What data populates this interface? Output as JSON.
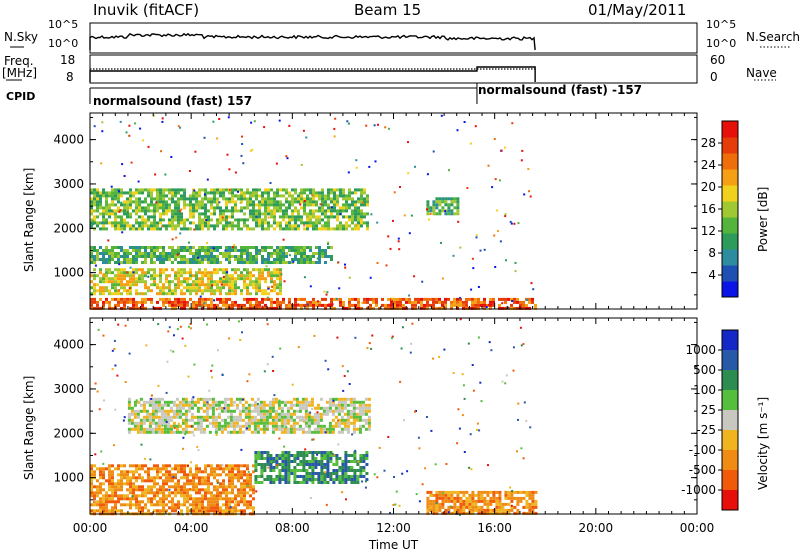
{
  "header": {
    "station": "Inuvik (fitACF)",
    "beam": "Beam 15",
    "date": "01/May/2011"
  },
  "sky_panel": {
    "left_label": "N.Sky",
    "right_label": "N.Search",
    "left_ticks": [
      "10^5",
      "10^0"
    ],
    "right_ticks": [
      "10^5",
      "10^0"
    ]
  },
  "freq_panel": {
    "left_label_1": "Freq.",
    "left_label_2": "[MHz]",
    "right_label": "Nave",
    "left_ticks": [
      "18",
      "8"
    ],
    "right_ticks": [
      "60",
      "0"
    ]
  },
  "cpid": {
    "label": "CPID",
    "segments": [
      {
        "label": "normalsound (fast) 157",
        "start_hour": 0
      },
      {
        "label": "normalsound (fast) -157",
        "start_hour": 15.3
      }
    ]
  },
  "chart_data": [
    {
      "type": "heatmap",
      "name": "power",
      "xlabel": "",
      "ylabel": "Slant Range [km]",
      "x_ticks": [
        "00:00",
        "04:00",
        "08:00",
        "12:00",
        "16:00",
        "20:00",
        "00:00"
      ],
      "xlim": [
        0,
        24
      ],
      "y_ticks": [
        "1000",
        "2000",
        "3000",
        "4000"
      ],
      "ylim": [
        180,
        4600
      ],
      "data_extent_hours": [
        0,
        17.6
      ],
      "colorbar": {
        "label": "Power [dB]",
        "ticks": [
          "4",
          "8",
          "12",
          "16",
          "20",
          "24",
          "28"
        ],
        "range": [
          0,
          32
        ],
        "colors": [
          "#0a14e6",
          "#1e50b4",
          "#2d8ca0",
          "#2d9b5a",
          "#55b43c",
          "#a0c832",
          "#f0d21e",
          "#f5a014",
          "#f06e0a",
          "#e63c0a",
          "#e60f0a"
        ]
      },
      "bands": [
        {
          "range_km": [
            180,
            430
          ],
          "hours": [
            0,
            17.6
          ],
          "mean_db": 26
        },
        {
          "range_km": [
            500,
            1100
          ],
          "hours": [
            0,
            7.5
          ],
          "mean_db": 18
        },
        {
          "range_km": [
            1250,
            1600
          ],
          "hours": [
            0,
            9.5
          ],
          "mean_db": 12
        },
        {
          "range_km": [
            2000,
            2900
          ],
          "hours": [
            0,
            11.0
          ],
          "mean_db": 14
        },
        {
          "range_km": [
            2300,
            2700
          ],
          "hours": [
            13.3,
            14.5
          ],
          "mean_db": 12
        }
      ]
    },
    {
      "type": "heatmap",
      "name": "velocity",
      "xlabel": "Time UT",
      "ylabel": "Slant Range [km]",
      "x_ticks": [
        "00:00",
        "04:00",
        "08:00",
        "12:00",
        "16:00",
        "20:00",
        "00:00"
      ],
      "xlim": [
        0,
        24
      ],
      "y_ticks": [
        "1000",
        "2000",
        "3000",
        "4000"
      ],
      "ylim": [
        180,
        4600
      ],
      "data_extent_hours": [
        0,
        17.6
      ],
      "colorbar": {
        "label": "Velocity [m s⁻¹]",
        "ticks": [
          "1000",
          "500",
          "100",
          "25",
          "-25",
          "-100",
          "-500",
          "-1000"
        ],
        "colors": [
          "#1428c8",
          "#2858a8",
          "#2d8c50",
          "#55be3c",
          "#c8c8c0",
          "#f0b41e",
          "#f08c14",
          "#f05a0a",
          "#e60f0a"
        ]
      },
      "bands": [
        {
          "range_km": [
            180,
            1300
          ],
          "hours": [
            0,
            6.5
          ],
          "mean_velocity": -300
        },
        {
          "range_km": [
            2000,
            2800
          ],
          "hours": [
            1.5,
            11.0
          ],
          "mean_velocity": 0
        },
        {
          "range_km": [
            900,
            1600
          ],
          "hours": [
            6.5,
            11.0
          ],
          "mean_velocity": 150
        },
        {
          "range_km": [
            180,
            700
          ],
          "hours": [
            13.3,
            17.6
          ],
          "mean_velocity": -250
        }
      ]
    }
  ]
}
